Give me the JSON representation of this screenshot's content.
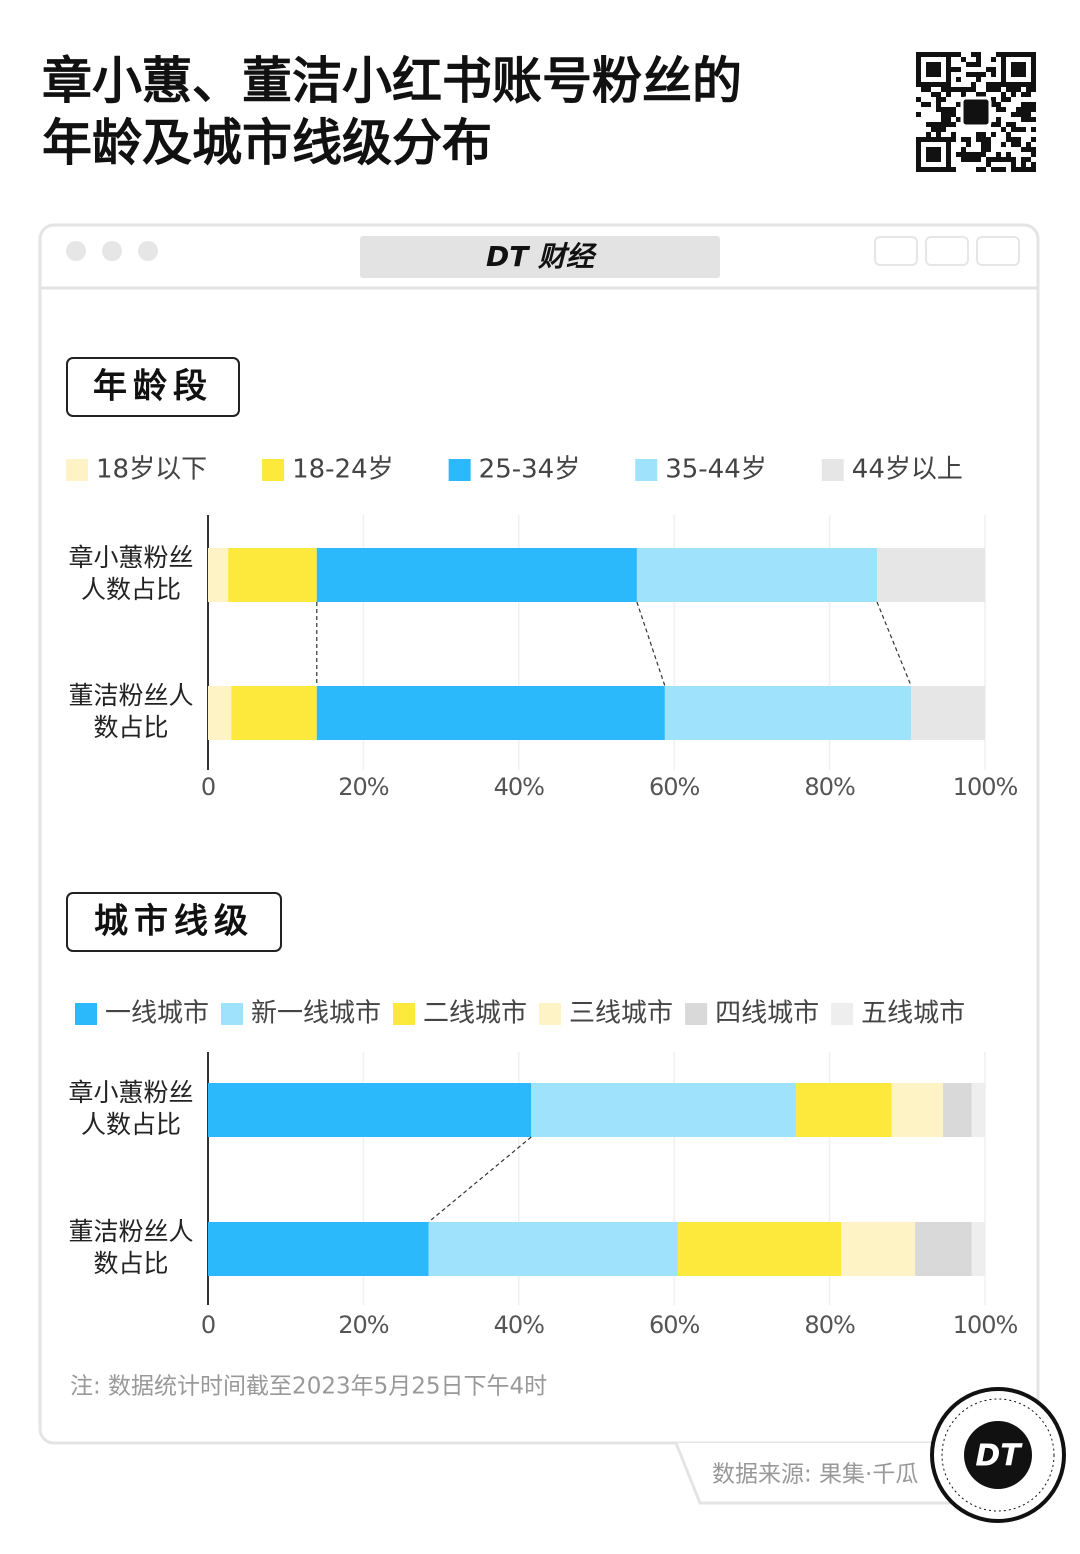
{
  "header": {
    "title": "章小蕙、董洁小红书账号粉丝的年龄及城市线级分布",
    "brand": "DT 财经"
  },
  "chart_data": [
    {
      "type": "stacked-hbar",
      "title": "年龄段",
      "categories": [
        "章小蕙粉丝人数占比",
        "董洁粉丝人数占比"
      ],
      "series": [
        {
          "name": "18岁以下",
          "color": "#fdf3c4",
          "values": [
            2.6,
            3.0
          ]
        },
        {
          "name": "18-24岁",
          "color": "#fde93b",
          "values": [
            11.4,
            11.0
          ]
        },
        {
          "name": "25-34岁",
          "color": "#2cb9fb",
          "values": [
            41.2,
            44.8
          ]
        },
        {
          "name": "35-44岁",
          "color": "#9ee2fb",
          "values": [
            30.9,
            31.7
          ]
        },
        {
          "name": "44岁以上",
          "color": "#e6e6e6",
          "values": [
            13.9,
            9.5
          ]
        }
      ],
      "xlim": [
        0,
        100
      ],
      "xticks": [
        0,
        {
          "value": 20,
          "label": "20%"
        },
        {
          "value": 40,
          "label": "40%"
        },
        {
          "value": 60,
          "label": "60%"
        },
        {
          "value": 80,
          "label": "80%"
        },
        {
          "value": 100,
          "label": "100%"
        }
      ],
      "grid": true
    },
    {
      "type": "stacked-hbar",
      "title": "城市线级",
      "categories": [
        "章小蕙粉丝人数占比",
        "董洁粉丝人数占比"
      ],
      "series": [
        {
          "name": "一线城市",
          "color": "#2cb9fb",
          "values": [
            41.6,
            28.4
          ]
        },
        {
          "name": "新一线城市",
          "color": "#9ee2fb",
          "values": [
            34.1,
            32.1
          ]
        },
        {
          "name": "二线城市",
          "color": "#fde93b",
          "values": [
            12.3,
            21.0
          ]
        },
        {
          "name": "三线城市",
          "color": "#fdf3c4",
          "values": [
            6.6,
            9.5
          ]
        },
        {
          "name": "四线城市",
          "color": "#d9d9d9",
          "values": [
            3.7,
            7.3
          ]
        },
        {
          "name": "五线城市",
          "color": "#eeeeee",
          "values": [
            1.7,
            1.7
          ]
        }
      ],
      "xlim": [
        0,
        100
      ],
      "xticks": [
        0,
        {
          "value": 20,
          "label": "20%"
        },
        {
          "value": 40,
          "label": "40%"
        },
        {
          "value": 60,
          "label": "60%"
        },
        {
          "value": 80,
          "label": "80%"
        },
        {
          "value": 100,
          "label": "100%"
        }
      ],
      "grid": true
    }
  ],
  "note": "注: 数据统计时间截至2023年5月25日下午4时",
  "source": "数据来源: 果集·千瓜",
  "logo": "DT"
}
